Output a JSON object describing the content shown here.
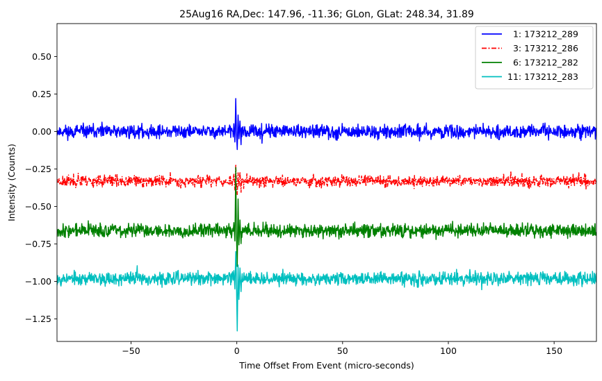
{
  "chart_data": {
    "type": "line",
    "title": "25Aug16 RA,Dec:  147.96, -11.36; GLon, GLat:  248.34,  31.89",
    "xlabel": "Time Offset From Event (micro-seconds)",
    "ylabel": "Intensity (Counts)",
    "xlim": [
      -85,
      170
    ],
    "ylim": [
      -1.4,
      0.72
    ],
    "xticks": [
      -50,
      0,
      50,
      100,
      150
    ],
    "xtick_labels": [
      "−50",
      "0",
      "50",
      "100",
      "150"
    ],
    "yticks": [
      0.5,
      0.25,
      0.0,
      -0.25,
      -0.5,
      -0.75,
      -1.0,
      -1.25
    ],
    "ytick_labels": [
      "0.50",
      "0.25",
      "0.00",
      "−0.25",
      "−0.50",
      "−0.75",
      "−1.00",
      "−1.25"
    ],
    "grid": false,
    "legend_position": "top-right",
    "event_x": 0,
    "series": [
      {
        "name": "1: 173212_289",
        "legend_label": "  1: 173212_289",
        "color": "#0000ff",
        "style": "solid",
        "baseline": 0.0,
        "noise_amplitude": 0.035,
        "event_excursion": [
          0.22,
          -0.12
        ],
        "seed": 11
      },
      {
        "name": "3: 173212_286",
        "legend_label": "  3: 173212_286",
        "color": "#ff0000",
        "style": "dashdot",
        "baseline": -0.33,
        "noise_amplitude": 0.03,
        "event_excursion": [
          -0.22,
          -0.42
        ],
        "seed": 23
      },
      {
        "name": "6: 173212_282",
        "legend_label": "  6: 173212_282",
        "color": "#008000",
        "style": "solid",
        "baseline": -0.66,
        "noise_amplitude": 0.035,
        "event_excursion": [
          -0.24,
          -0.9
        ],
        "seed": 37
      },
      {
        "name": "11: 173212_283",
        "legend_label": "11: 173212_283",
        "color": "#00bfbf",
        "style": "solid",
        "baseline": -0.98,
        "noise_amplitude": 0.035,
        "event_excursion": [
          -0.8,
          -1.33
        ],
        "seed": 53
      }
    ]
  }
}
